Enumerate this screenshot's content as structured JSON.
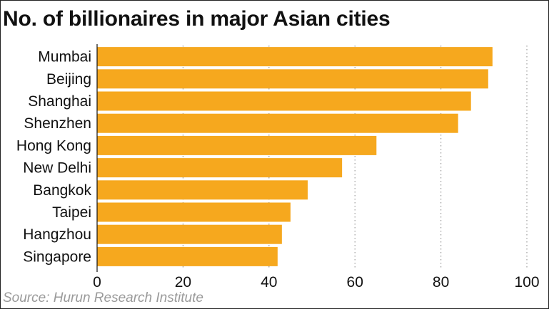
{
  "chart_data": {
    "type": "bar",
    "orientation": "horizontal",
    "title": "No. of billionaires in major Asian cities",
    "source": "Source: Hurun Research Institute",
    "categories": [
      "Mumbai",
      "Beijing",
      "Shanghai",
      "Shenzhen",
      "Hong Kong",
      "New Delhi",
      "Bangkok",
      "Taipei",
      "Hangzhou",
      "Singapore"
    ],
    "values": [
      92,
      91,
      87,
      84,
      65,
      57,
      49,
      45,
      43,
      42
    ],
    "xlim": [
      0,
      100
    ],
    "xticks": [
      "0",
      "20",
      "40",
      "60",
      "80",
      "100"
    ],
    "xlabel": "",
    "ylabel": "",
    "grid": "vertical-dotted",
    "bar_color": "#F6A81E",
    "grid_color": "#9a9a9a"
  }
}
